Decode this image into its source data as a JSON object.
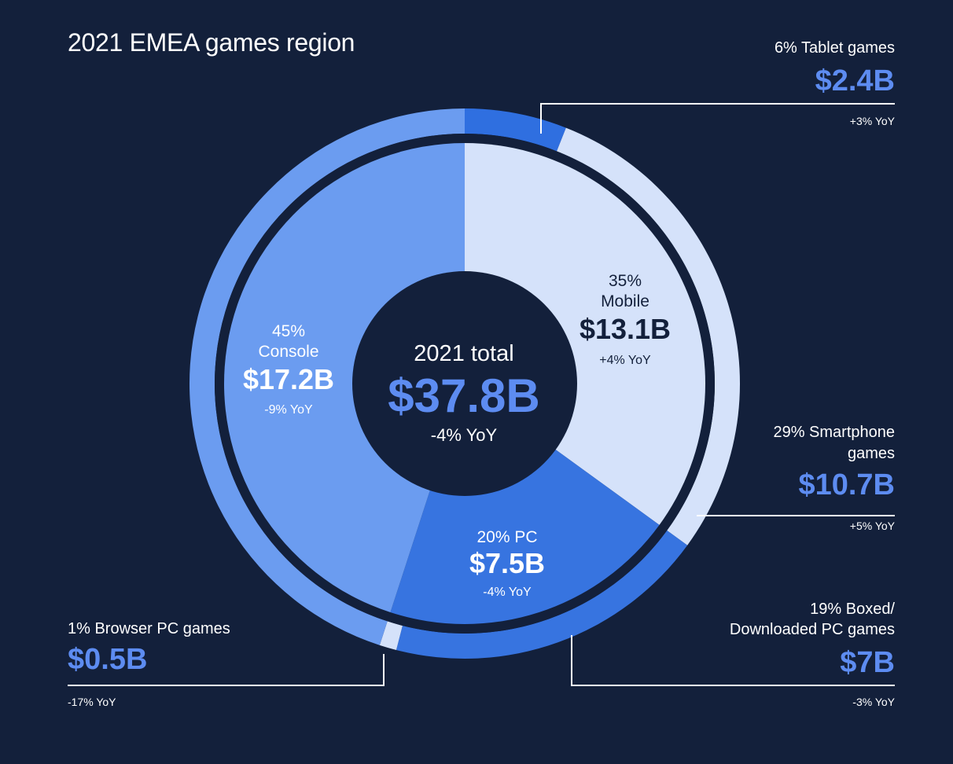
{
  "colors": {
    "background": "#13203b",
    "accent": "#5d8cf1",
    "mobile": "#d5e2fa",
    "pc": "#3774e0",
    "console": "#6b9cf0",
    "outer_tablet": "#2f6fe0",
    "outer_smartphone": "#d5e2fa",
    "outer_boxed_pc": "#3774e0",
    "outer_browser_pc": "#d5e2fa",
    "outer_console": "#6b9cf0",
    "ring_gap": "#13203b",
    "center": "#13203b"
  },
  "chart_data": {
    "type": "pie",
    "title": "2021 EMEA games region",
    "total": {
      "label": "2021 total",
      "value": "$37.8B",
      "yoy": "-4% YoY"
    },
    "inner": [
      {
        "pct_label": "35%",
        "name": "Mobile",
        "share": 35,
        "value_label": "$13.1B",
        "value": 13.1,
        "yoy": "+4% YoY",
        "color": "#d5e2fa"
      },
      {
        "pct_label": "20% PC",
        "name": "PC",
        "share": 20,
        "value_label": "$7.5B",
        "value": 7.5,
        "yoy": "-4% YoY",
        "color": "#3774e0"
      },
      {
        "pct_label": "45%",
        "name": "Console",
        "share": 45,
        "value_label": "$17.2B",
        "value": 17.2,
        "yoy": "-9% YoY",
        "color": "#6b9cf0"
      }
    ],
    "outer": [
      {
        "label": "6% Tablet games",
        "share": 6,
        "value_label": "$2.4B",
        "value": 2.4,
        "yoy": "+3% YoY",
        "color": "#2f6fe0"
      },
      {
        "label": "29% Smartphone games",
        "label_line1": "29% Smartphone",
        "label_line2": "games",
        "share": 29,
        "value_label": "$10.7B",
        "value": 10.7,
        "yoy": "+5% YoY",
        "color": "#d5e2fa"
      },
      {
        "label": "19% Boxed/ Downloaded PC games",
        "label_line1": "19% Boxed/",
        "label_line2": "Downloaded PC games",
        "share": 19,
        "value_label": "$7B",
        "value": 7,
        "yoy": "-3% YoY",
        "color": "#3774e0"
      },
      {
        "label": "1% Browser PC games",
        "share": 1,
        "value_label": "$0.5B",
        "value": 0.5,
        "yoy": "-17% YoY",
        "color": "#d5e2fa"
      },
      {
        "label": "",
        "share": 45,
        "color": "#6b9cf0"
      }
    ]
  }
}
